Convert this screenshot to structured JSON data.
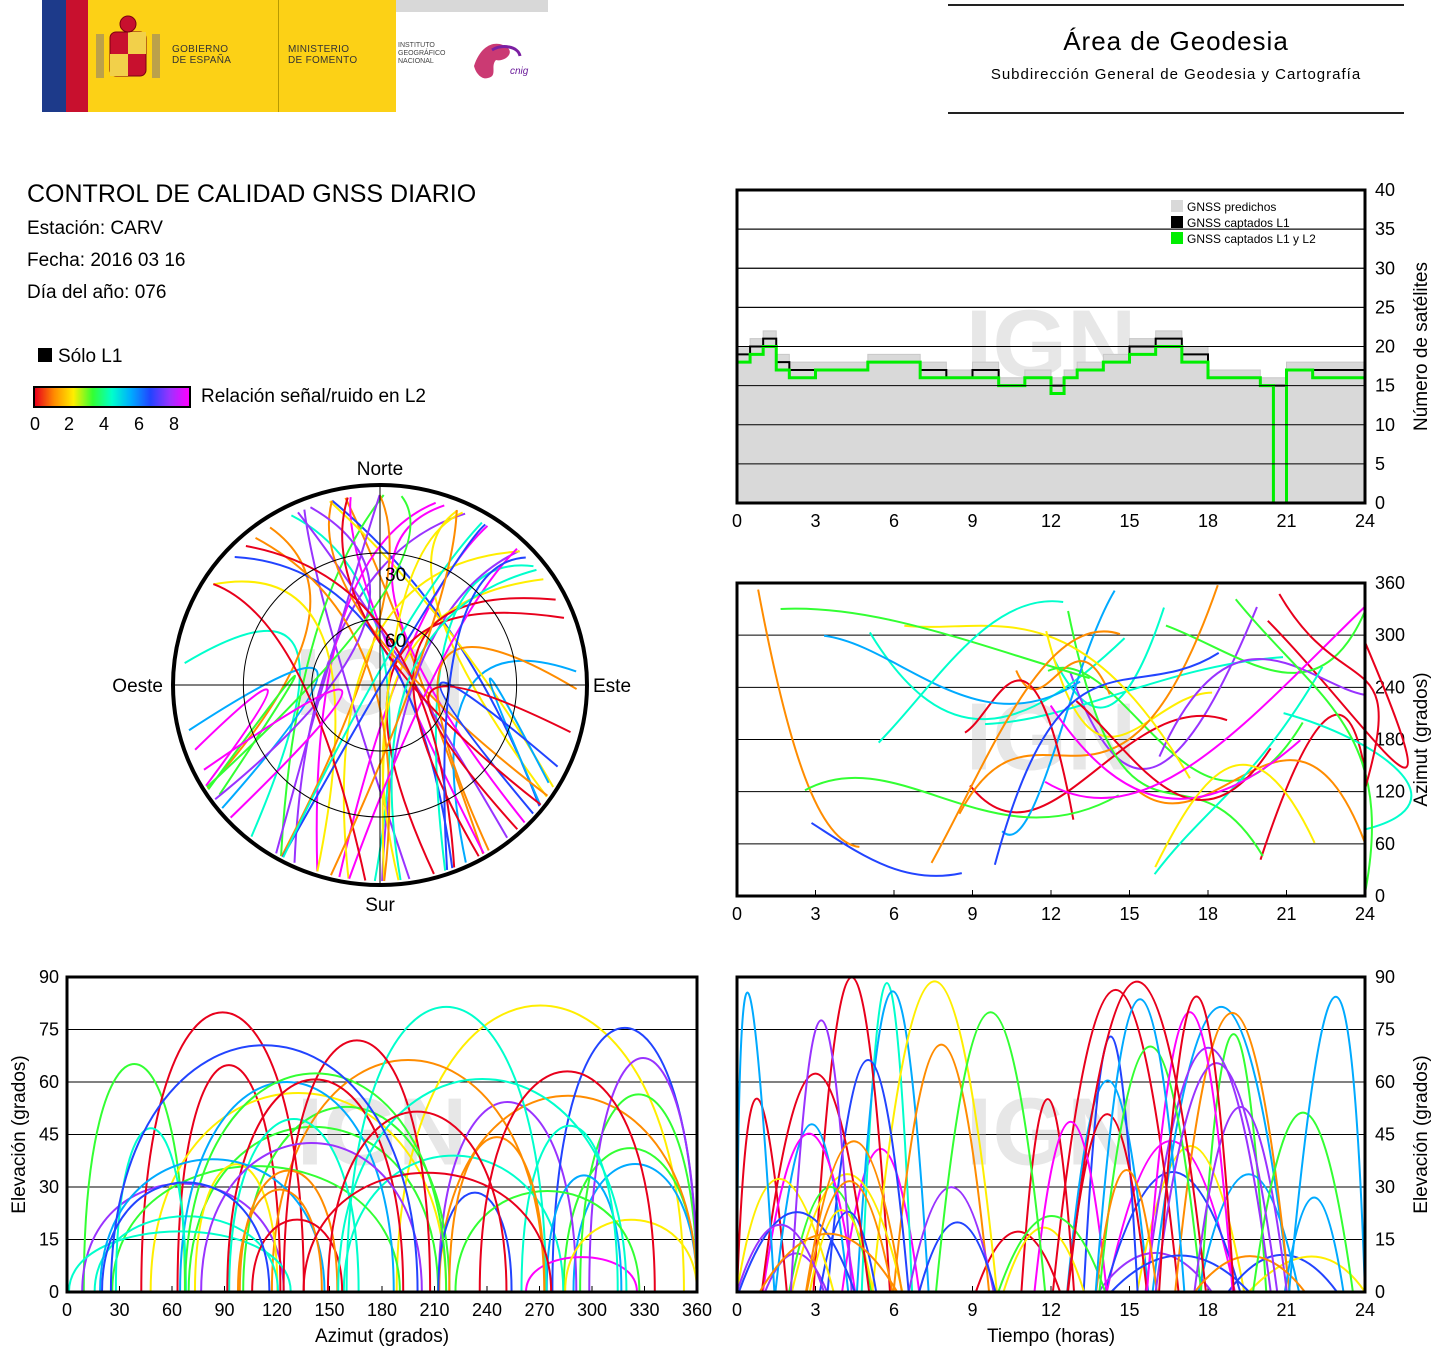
{
  "header": {
    "gobierno_line1": "GOBIERNO",
    "gobierno_line2": "DE ESPAÑA",
    "ministerio_line1": "MINISTERIO",
    "ministerio_line2": "DE FOMENTO",
    "instituto_line1": "INSTITUTO",
    "instituto_line2": "GEOGRÁFICO",
    "instituto_line3": "NACIONAL",
    "cnig": "cnig",
    "area_title": "Área de Geodesia",
    "area_subtitle": "Subdirección General de Geodesia y Cartografía"
  },
  "report": {
    "title": "CONTROL DE CALIDAD GNSS DIARIO",
    "station": "Estación: CARV",
    "date": "Fecha: 2016 03 16",
    "doy": "Día del año: 076",
    "legend_l1": "Sólo L1",
    "legend_snr": "Relación señal/ruido en L2",
    "snr_ticks": [
      "0",
      "2",
      "4",
      "6",
      "8"
    ],
    "watermark": "IGN"
  },
  "colors": {
    "predicted": "#d9d9d9",
    "l1": "#000000",
    "l1l2": "#00ee00",
    "snr_scale": [
      "#e8001c",
      "#ff8c00",
      "#ffee00",
      "#33ff33",
      "#00ffcc",
      "#00aaff",
      "#2244ff",
      "#9933ff",
      "#ff00ff"
    ]
  },
  "chart_data": [
    {
      "type": "line",
      "id": "satellite-count",
      "ylabel": "Número de satélites",
      "xlim": [
        0,
        24
      ],
      "ylim": [
        0,
        40
      ],
      "xticks": [
        "0",
        "3",
        "6",
        "9",
        "12",
        "15",
        "18",
        "21",
        "24"
      ],
      "yticks": [
        "0",
        "5",
        "10",
        "15",
        "20",
        "25",
        "30",
        "35",
        "40"
      ],
      "grid": true,
      "legend_position": "top-right",
      "legend": [
        "GNSS predichos",
        "GNSS captados L1",
        "GNSS captados L1 y L2"
      ],
      "x": [
        0,
        0.5,
        1,
        1.5,
        2,
        3,
        4,
        5,
        6,
        7,
        8,
        9,
        10,
        11,
        12,
        12.5,
        13,
        14,
        15,
        16,
        17,
        18,
        19,
        20,
        20.5,
        21,
        22,
        23,
        24
      ],
      "series": [
        {
          "name": "GNSS predichos",
          "values": [
            20,
            21,
            22,
            19,
            18,
            18,
            18,
            19,
            19,
            18,
            17,
            18,
            16,
            17,
            16,
            17,
            18,
            19,
            21,
            22,
            20,
            17,
            17,
            16,
            16,
            18,
            18,
            18,
            19
          ]
        },
        {
          "name": "GNSS captados L1",
          "values": [
            19,
            20,
            21,
            18,
            17,
            17,
            17,
            18,
            18,
            17,
            16,
            17,
            15,
            16,
            15,
            16,
            17,
            18,
            20,
            21,
            19,
            16,
            16,
            15,
            15,
            17,
            17,
            17,
            18
          ]
        },
        {
          "name": "GNSS captados L1 y L2",
          "values": [
            18,
            19,
            20,
            17,
            16,
            17,
            17,
            18,
            18,
            16,
            16,
            16,
            15,
            16,
            14,
            16,
            17,
            18,
            19,
            20,
            18,
            16,
            16,
            15,
            0,
            17,
            16,
            16,
            17
          ]
        }
      ]
    },
    {
      "type": "scatter",
      "id": "azimuth-vs-time",
      "ylabel": "Azimut (grados)",
      "xlim": [
        0,
        24
      ],
      "ylim": [
        0,
        360
      ],
      "xticks": [
        "0",
        "3",
        "6",
        "9",
        "12",
        "15",
        "18",
        "21",
        "24"
      ],
      "yticks": [
        "0",
        "60",
        "120",
        "180",
        "240",
        "300",
        "360"
      ],
      "grid": true
    },
    {
      "type": "scatter",
      "id": "elevation-vs-azimuth",
      "xlabel": "Azimut (grados)",
      "ylabel": "Elevación (grados)",
      "xlim": [
        0,
        360
      ],
      "ylim": [
        0,
        90
      ],
      "xticks": [
        "0",
        "30",
        "60",
        "90",
        "120",
        "150",
        "180",
        "210",
        "240",
        "270",
        "300",
        "330",
        "360"
      ],
      "yticks": [
        "0",
        "15",
        "30",
        "45",
        "60",
        "75",
        "90"
      ],
      "grid": true
    },
    {
      "type": "scatter",
      "id": "elevation-vs-time",
      "xlabel": "Tiempo (horas)",
      "ylabel": "Elevación (grados)",
      "xlim": [
        0,
        24
      ],
      "ylim": [
        0,
        90
      ],
      "xticks": [
        "0",
        "3",
        "6",
        "9",
        "12",
        "15",
        "18",
        "21",
        "24"
      ],
      "yticks": [
        "0",
        "15",
        "30",
        "45",
        "60",
        "75",
        "90"
      ],
      "grid": true
    },
    {
      "type": "scatter",
      "id": "skyplot",
      "directions": {
        "north": "Norte",
        "south": "Sur",
        "east": "Este",
        "west": "Oeste"
      },
      "rings": [
        "30",
        "60"
      ]
    }
  ]
}
